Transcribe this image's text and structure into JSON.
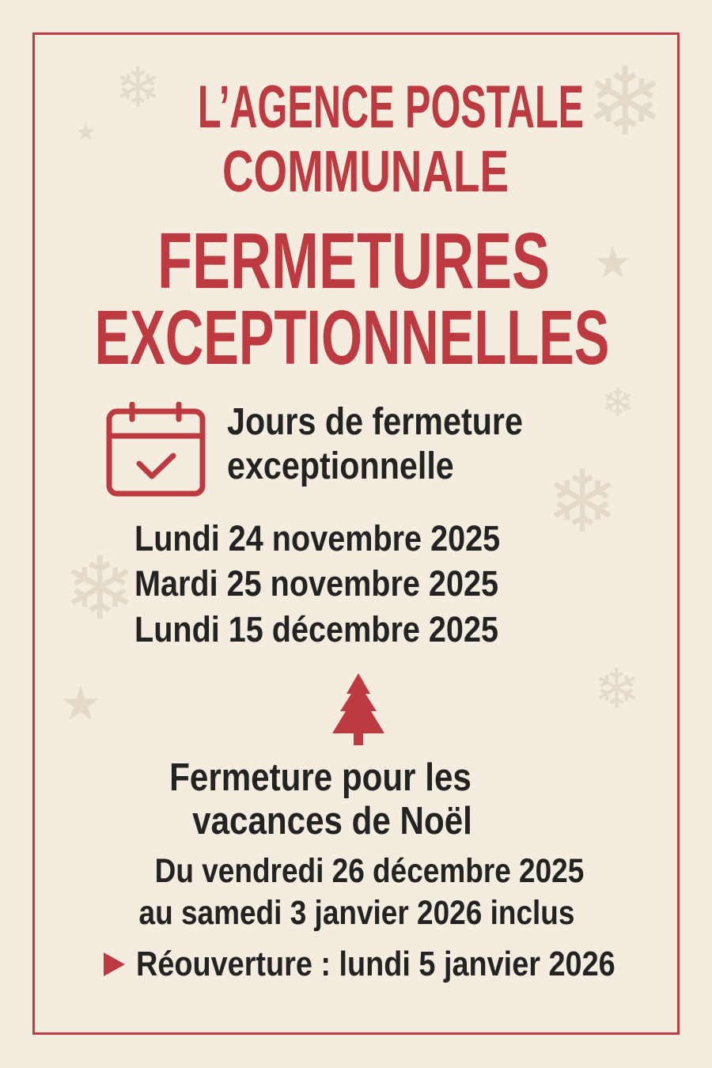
{
  "header": {
    "line1": "L’AGENCE POSTALE",
    "line2": "COMMUNALE"
  },
  "title": {
    "line1": "FERMETURES",
    "line2": "EXCEPTIONNELLES"
  },
  "exceptional_days": {
    "icon": "calendar-check-icon",
    "heading_line1": "Jours de fermeture",
    "heading_line2": "exceptionnelle",
    "dates": [
      "Lundi 24 novembre 2025",
      "Mardi 25 novembre 2025",
      "Lundi 15 décembre 2025"
    ]
  },
  "christmas": {
    "icon": "christmas-tree-icon",
    "heading_line1": "Fermeture pour les",
    "heading_line2": "vacances de Noël",
    "period_line1": "Du vendredi 26 décembre 2025",
    "period_line2": "au samedi 3 janvier 2026 inclus",
    "reopening_icon": "triangle-right-icon",
    "reopening": "Réouverture : lundi 5 janvier 2026"
  },
  "colors": {
    "accent": "#bd3a40",
    "text": "#232323",
    "background": "#f3ecdf"
  }
}
